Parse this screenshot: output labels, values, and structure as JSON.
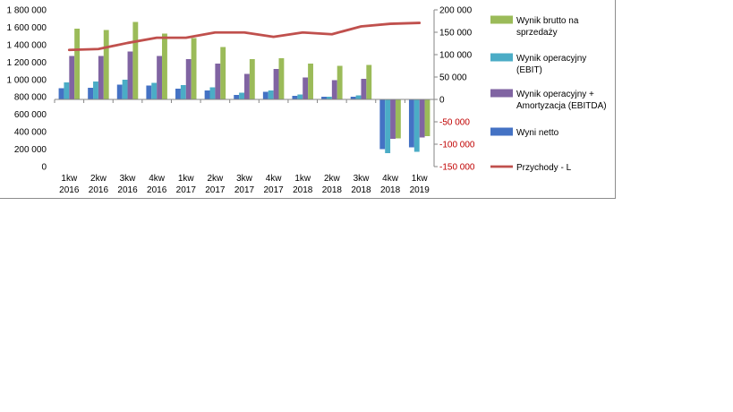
{
  "chart_data": {
    "type": "bar",
    "categories": [
      [
        "1kw",
        "2016"
      ],
      [
        "2kw",
        "2016"
      ],
      [
        "3kw",
        "2016"
      ],
      [
        "4kw",
        "2016"
      ],
      [
        "1kw",
        "2017"
      ],
      [
        "2kw",
        "2017"
      ],
      [
        "3kw",
        "2017"
      ],
      [
        "4kw",
        "2017"
      ],
      [
        "1kw",
        "2018"
      ],
      [
        "2kw",
        "2018"
      ],
      [
        "3kw",
        "2018"
      ],
      [
        "4kw",
        "2018"
      ],
      [
        "1kw",
        "2019"
      ]
    ],
    "left_axis": {
      "ticks": [
        "1 800 000",
        "1 600 000",
        "1 400 000",
        "1 200 000",
        "1 000 000",
        "800 000",
        "600 000",
        "400 000",
        "200 000",
        "0"
      ],
      "tick_values": [
        1800000,
        1600000,
        1400000,
        1200000,
        1000000,
        800000,
        600000,
        400000,
        200000,
        0
      ],
      "range": [
        0,
        1800000
      ]
    },
    "right_axis": {
      "ticks": [
        "200 000",
        "150 000",
        "100 000",
        "50 000",
        "0",
        "-50 000",
        "-100 000",
        "-150 000"
      ],
      "tick_values": [
        200000,
        150000,
        100000,
        50000,
        0,
        -50000,
        -100000,
        -150000
      ],
      "range": [
        -150000,
        200000
      ],
      "negative_color": "#c00000"
    },
    "series": [
      {
        "name": "Wyni netto",
        "axis": "right",
        "kind": "bar",
        "color": "#4472c4",
        "values": [
          25000,
          26000,
          33000,
          31000,
          24000,
          20000,
          10000,
          17000,
          8000,
          6000,
          6000,
          -111000,
          -107000
        ]
      },
      {
        "name": "Wynik operacyjny (EBIT)",
        "axis": "right",
        "kind": "bar",
        "color": "#4bacc6",
        "values": [
          38000,
          40000,
          44000,
          37000,
          32000,
          27000,
          15000,
          20000,
          11000,
          6000,
          9000,
          -120000,
          -117000
        ]
      },
      {
        "name": "Wynik operacyjny + Amortyzacja (EBITDA)",
        "axis": "right",
        "kind": "bar",
        "color": "#8064a2",
        "values": [
          97000,
          97000,
          107000,
          97000,
          90000,
          80000,
          57000,
          68000,
          49000,
          43000,
          46000,
          -88000,
          -85000
        ]
      },
      {
        "name": "Wynik brutto na sprzedaży",
        "axis": "right",
        "kind": "bar",
        "color": "#9bbb59",
        "values": [
          158000,
          155000,
          173000,
          147000,
          137000,
          117000,
          90000,
          92000,
          80000,
          75000,
          77000,
          -87000,
          -82000
        ]
      },
      {
        "name": "Przychody - L",
        "axis": "left",
        "kind": "line",
        "color": "#c0504d",
        "values": [
          1340000,
          1350000,
          1420000,
          1480000,
          1480000,
          1540000,
          1540000,
          1490000,
          1540000,
          1520000,
          1610000,
          1640000,
          1650000
        ]
      }
    ],
    "legend": {
      "position": "right",
      "entries": [
        {
          "lines": [
            "Wynik brutto na",
            "sprzedaży"
          ],
          "color": "#9bbb59",
          "marker": "box"
        },
        {
          "lines": [
            "Wynik operacyjny",
            "(EBIT)"
          ],
          "color": "#4bacc6",
          "marker": "box"
        },
        {
          "lines": [
            "Wynik operacyjny +",
            "Amortyzacja (EBITDA)"
          ],
          "color": "#8064a2",
          "marker": "box"
        },
        {
          "lines": [
            "Wyni netto"
          ],
          "color": "#4472c4",
          "marker": "box"
        },
        {
          "lines": [
            "Przychody - L"
          ],
          "color": "#c0504d",
          "marker": "line"
        }
      ]
    },
    "grid": false
  }
}
